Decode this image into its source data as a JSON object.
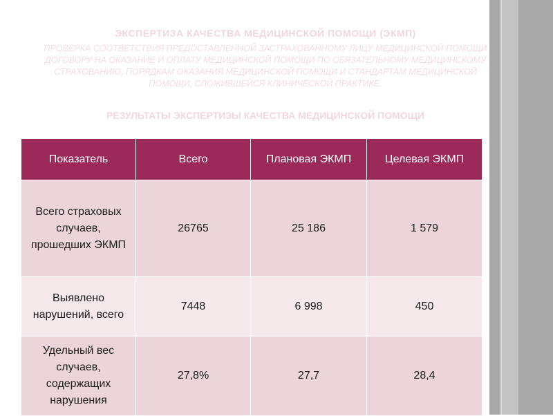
{
  "slide": {
    "title": "ЭКСПЕРТИЗА КАЧЕСТВА МЕДИЦИНСКОЙ ПОМОЩИ (ЭКМП)",
    "subtitle": "ПРОВЕРКА СООТВЕТСТВИЯ ПРЕДОСТАВЛЕННОЙ ЗАСТРАХОВАННОМУ ЛИЦУ МЕДИЦИНСКОЙ ПОМОЩИ ДОГОВОРУ НА ОКАЗАНИЕ И ОПЛАТУ МЕДИЦИНСКОЙ ПОМОЩИ ПО ОБЯЗАТЕЛЬНОМУ МЕДИЦИНСКОМУ СТРАХОВАНИЮ, ПОРЯДКАМ ОКАЗАНИЯ МЕДИЦИНСКОЙ ПОМОЩИ И СТАНДАРТАМ МЕДИЦИНСКОЙ ПОМОЩИ, СЛОЖИВШЕЙСЯ КЛИНИЧЕСКОЙ ПРАКТИКЕ.",
    "results_heading": "РЕЗУЛЬТАТЫ ЭКСПЕРТИЗЫ КАЧЕСТВА МЕДИЦИНСКОЙ ПОМОЩИ"
  },
  "table": {
    "headers": [
      "Показатель",
      "Всего",
      "Плановая ЭКМП",
      "Целевая ЭКМП"
    ],
    "rows": [
      [
        "Всего страховых случаев, прошедших ЭКМП",
        "26765",
        "25 186",
        "1 579"
      ],
      [
        "Выявлено нарушений, всего",
        "7448",
        "6 998",
        "450"
      ],
      [
        "Удельный вес случаев, содержащих нарушения",
        "27,8%",
        "27,7",
        "28,4"
      ]
    ]
  },
  "colors": {
    "header_bg": "#9b2a59",
    "row_dark": "#ecd5da",
    "row_light": "#f5e9ec",
    "title_faint": "#f2d6e1"
  }
}
